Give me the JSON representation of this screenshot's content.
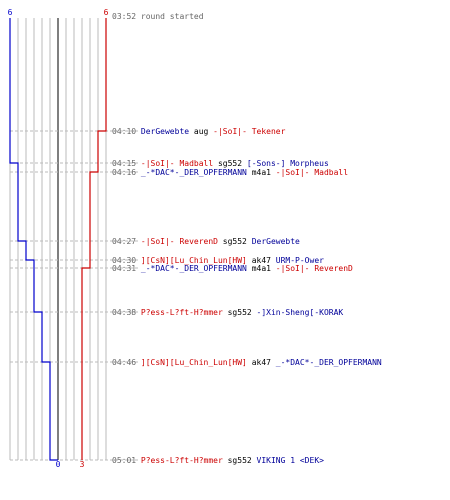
{
  "colors": {
    "team_a": "#0000cc",
    "team_b": "#cc0000",
    "grid": "#bbbbbb",
    "dash": "#bbbbbb",
    "center": "#555555",
    "time": "#666666"
  },
  "score_labels": {
    "team_a_start": "6",
    "team_b_start": "6",
    "team_a_end": "0",
    "team_b_end": "3"
  },
  "chart_data": {
    "type": "line",
    "x_unit": "remaining players",
    "x_range": [
      0,
      6
    ],
    "times": [
      "03:52",
      "04:10",
      "04:15",
      "04:16",
      "04:27",
      "04:30",
      "04:31",
      "04:38",
      "04:46",
      "05:01"
    ],
    "series": [
      {
        "team": "blue",
        "values": [
          6,
          6,
          5,
          5,
          4,
          3,
          3,
          2,
          1,
          0
        ]
      },
      {
        "team": "red",
        "values": [
          6,
          5,
          5,
          4,
          4,
          4,
          3,
          3,
          3,
          3
        ]
      }
    ]
  },
  "events": [
    {
      "time": "03:52",
      "parts": [
        {
          "text": "round started",
          "color": "time"
        }
      ]
    },
    {
      "time": "04:10",
      "parts": [
        {
          "text": "DerGewebte",
          "color": "blue"
        },
        {
          "text": " aug ",
          "color": "blk"
        },
        {
          "text": "-|SoI|- Tekener",
          "color": "red"
        }
      ]
    },
    {
      "time": "04:15",
      "parts": [
        {
          "text": "-|SoI|- Madball",
          "color": "red"
        },
        {
          "text": " sg552 ",
          "color": "blk"
        },
        {
          "text": "[-Sons-] Morpheus",
          "color": "blue"
        }
      ]
    },
    {
      "time": "04:16",
      "parts": [
        {
          "text": "_-*DAC*-_DER_OPFERMANN",
          "color": "blue"
        },
        {
          "text": " m4a1 ",
          "color": "blk"
        },
        {
          "text": "-|SoI|- Madball",
          "color": "red"
        }
      ]
    },
    {
      "time": "04:27",
      "parts": [
        {
          "text": "-|SoI|- ReverenD",
          "color": "red"
        },
        {
          "text": " sg552 ",
          "color": "blk"
        },
        {
          "text": "DerGewebte",
          "color": "blue"
        }
      ]
    },
    {
      "time": "04:30",
      "parts": [
        {
          "text": "][CsN][Lu_Chin_Lun[HW]",
          "color": "red"
        },
        {
          "text": " ak47 ",
          "color": "blk"
        },
        {
          "text": "URM-P-Ower",
          "color": "blue"
        }
      ]
    },
    {
      "time": "04:31",
      "parts": [
        {
          "text": "_-*DAC*-_DER_OPFERMANN",
          "color": "blue"
        },
        {
          "text": " m4a1 ",
          "color": "blk"
        },
        {
          "text": "-|SoI|- ReverenD",
          "color": "red"
        }
      ]
    },
    {
      "time": "04:38",
      "parts": [
        {
          "text": "P?ess-L?ft-H?mmer",
          "color": "red"
        },
        {
          "text": " sg552 ",
          "color": "blk"
        },
        {
          "text": "-]Xin-Sheng[-KORAK",
          "color": "blue"
        }
      ]
    },
    {
      "time": "04:46",
      "parts": [
        {
          "text": "][CsN][Lu_Chin_Lun[HW]",
          "color": "red"
        },
        {
          "text": " ak47 ",
          "color": "blk"
        },
        {
          "text": "_-*DAC*-_DER_OPFERMANN",
          "color": "blue"
        }
      ]
    },
    {
      "time": "05:01",
      "parts": [
        {
          "text": "P?ess-L?ft-H?mmer",
          "color": "red"
        },
        {
          "text": " sg552 ",
          "color": "blk"
        },
        {
          "text": "VIKING 1 <DEK>",
          "color": "blue"
        }
      ]
    }
  ]
}
